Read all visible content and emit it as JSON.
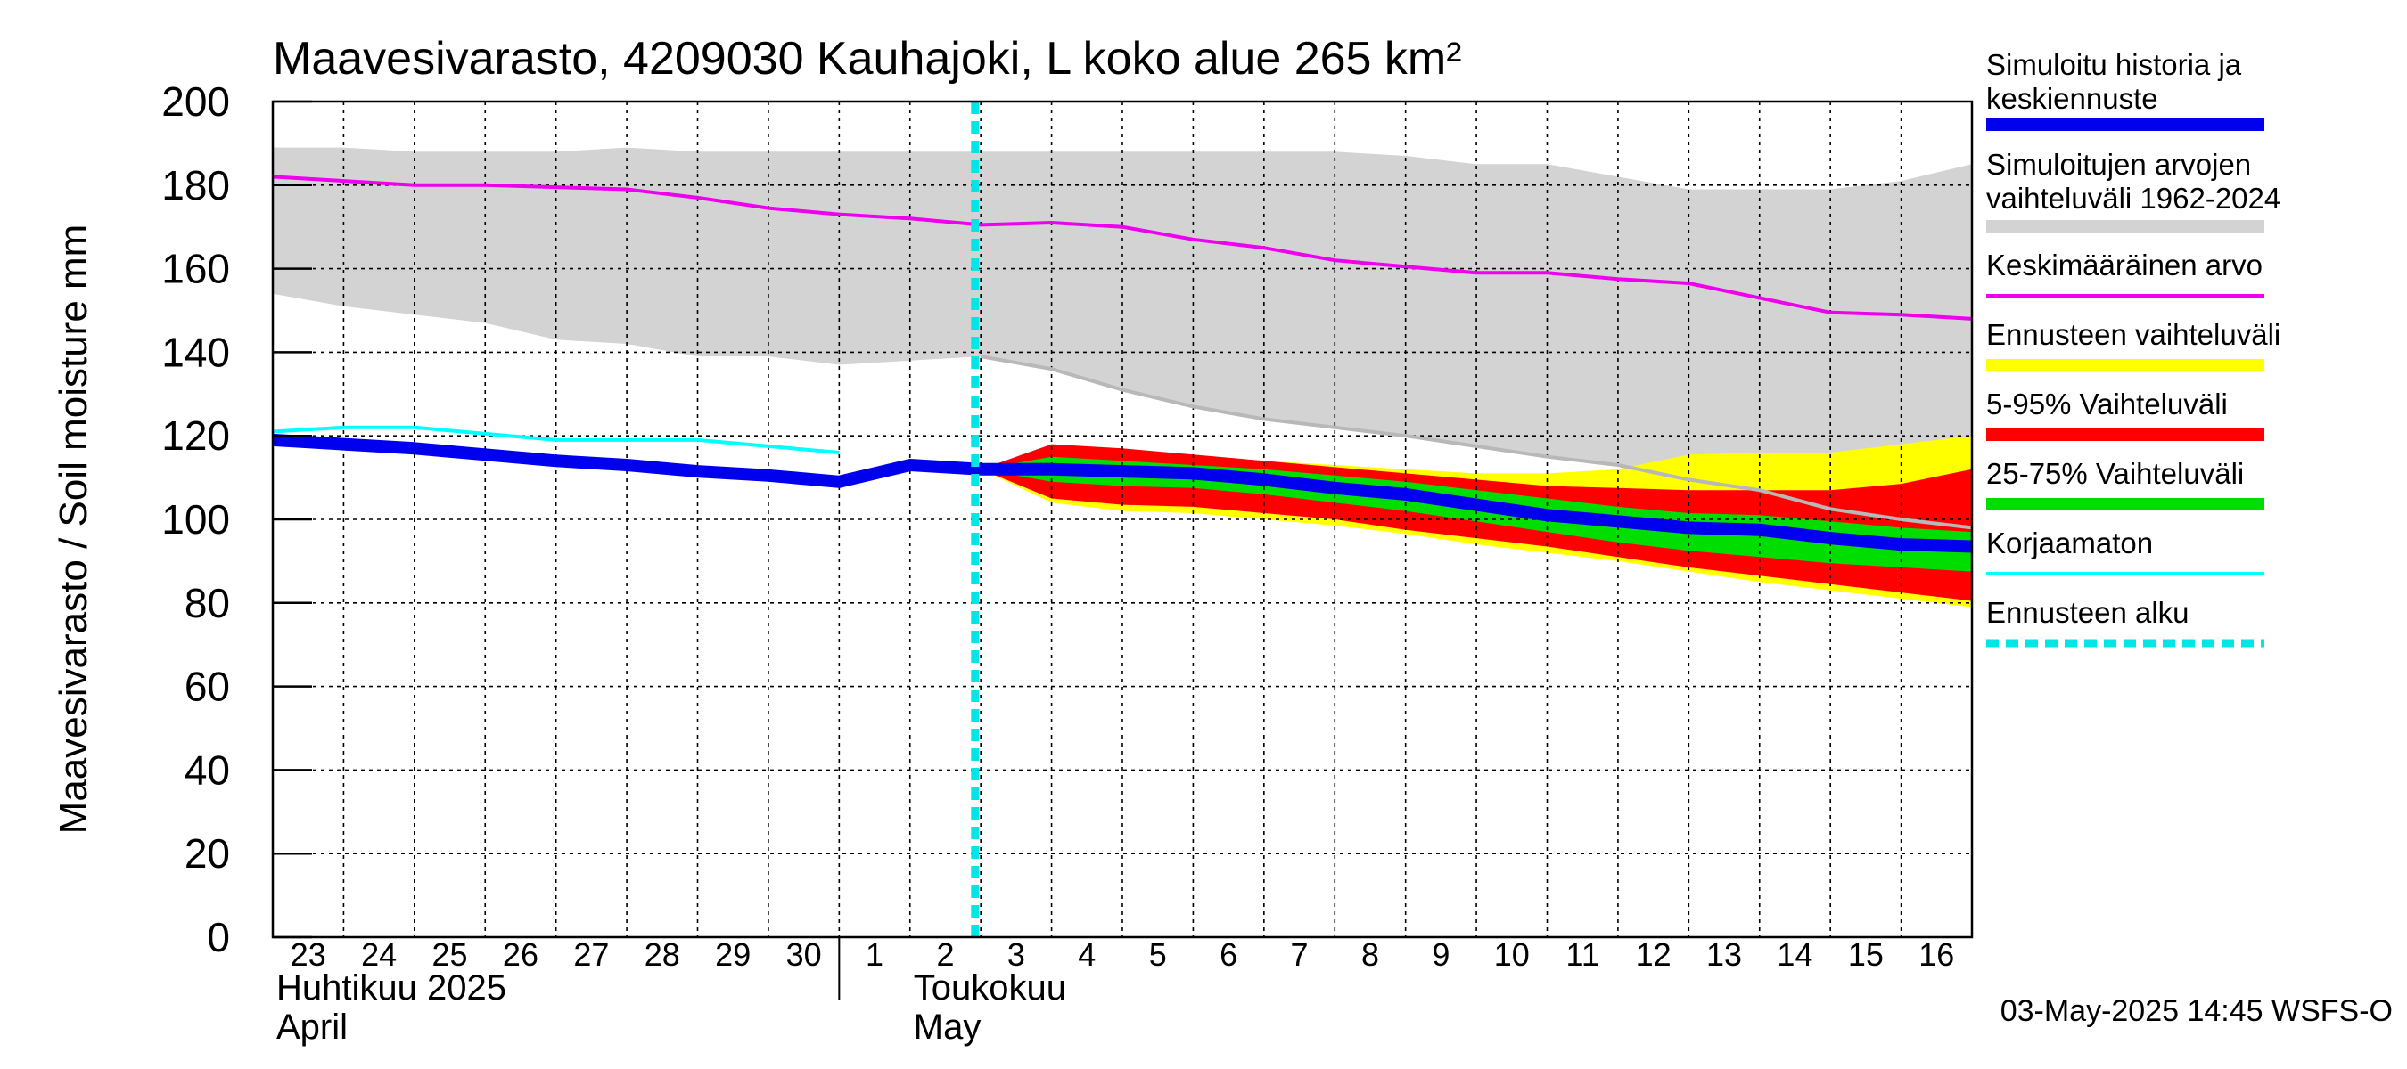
{
  "chart_data": {
    "type": "area",
    "title": "Maavesivarasto, 4209030 Kauhajoki, L koko alue 265 km²",
    "ylabel": "Maavesivarasto / Soil moisture   mm",
    "ylim": [
      0,
      200
    ],
    "yticks": [
      0,
      20,
      40,
      60,
      80,
      100,
      120,
      140,
      160,
      180,
      200
    ],
    "x_start": "2025-04-23",
    "x_end": "2025-05-17",
    "x_tick_labels": [
      "23",
      "24",
      "25",
      "26",
      "27",
      "28",
      "29",
      "30",
      "1",
      "2",
      "3",
      "4",
      "5",
      "6",
      "7",
      "8",
      "9",
      "10",
      "11",
      "12",
      "13",
      "14",
      "15",
      "16"
    ],
    "month_labels": [
      {
        "fi": "Huhtikuu  2025",
        "en": "April",
        "date": "2025-04-23"
      },
      {
        "fi": "Toukokuu",
        "en": "May",
        "date": "2025-05-02"
      }
    ],
    "month_divider": "2025-05-01",
    "forecast_start": "2025-05-03",
    "grid": true,
    "legend_position": "right",
    "timestamp": "03-May-2025 14:45 WSFS-O",
    "colors": {
      "history": "#0000ee",
      "range_hist": "#d3d3d3",
      "mean": "#ee00ee",
      "forecast_range": "#ffff00",
      "p5_95": "#ff0000",
      "p25_75": "#00dd00",
      "uncorrected": "#00ffff",
      "forecast_start": "#00e5e5",
      "range_upper_line": "#b8b8b8"
    },
    "series": [
      {
        "name": "Simuloitu historia ja keskiennuste",
        "key": "history",
        "x": [
          "2025-04-23",
          "2025-04-24",
          "2025-04-25",
          "2025-04-26",
          "2025-04-27",
          "2025-04-28",
          "2025-04-29",
          "2025-04-30",
          "2025-05-01",
          "2025-05-02",
          "2025-05-03",
          "2025-05-04",
          "2025-05-05",
          "2025-05-06",
          "2025-05-07",
          "2025-05-08",
          "2025-05-09",
          "2025-05-10",
          "2025-05-11",
          "2025-05-12",
          "2025-05-13",
          "2025-05-14",
          "2025-05-15",
          "2025-05-16",
          "2025-05-17"
        ],
        "y": [
          119,
          118,
          117,
          115.5,
          114,
          113,
          111.5,
          110.5,
          109,
          113,
          112,
          112,
          111.5,
          111,
          109.5,
          107.5,
          106,
          103.5,
          101,
          99.5,
          98,
          97.5,
          95.5,
          94,
          93.5
        ]
      },
      {
        "name": "Simuloitujen arvojen vaihteluväli 1962-2024",
        "key": "range_hist",
        "x": [
          "2025-04-23",
          "2025-04-24",
          "2025-04-25",
          "2025-04-26",
          "2025-04-27",
          "2025-04-28",
          "2025-04-29",
          "2025-04-30",
          "2025-05-01",
          "2025-05-02",
          "2025-05-03",
          "2025-05-04",
          "2025-05-05",
          "2025-05-06",
          "2025-05-07",
          "2025-05-08",
          "2025-05-09",
          "2025-05-10",
          "2025-05-11",
          "2025-05-12",
          "2025-05-13",
          "2025-05-14",
          "2025-05-15",
          "2025-05-16",
          "2025-05-17"
        ],
        "lower": [
          154,
          151,
          149,
          147,
          143,
          142,
          139,
          139,
          137,
          138,
          139,
          136,
          131,
          127,
          124,
          122,
          120,
          117.5,
          115,
          113,
          109.5,
          107,
          102.5,
          100,
          98
        ],
        "upper": [
          189,
          189,
          188,
          188,
          188,
          189,
          188,
          188,
          188,
          188,
          188,
          188,
          188,
          188,
          188,
          188,
          187,
          185,
          185,
          182,
          179,
          179,
          179,
          181,
          185
        ]
      },
      {
        "name": "Keskimääräinen arvo",
        "key": "mean",
        "x": [
          "2025-04-23",
          "2025-04-24",
          "2025-04-25",
          "2025-04-26",
          "2025-04-27",
          "2025-04-28",
          "2025-04-29",
          "2025-04-30",
          "2025-05-01",
          "2025-05-02",
          "2025-05-03",
          "2025-05-04",
          "2025-05-05",
          "2025-05-06",
          "2025-05-07",
          "2025-05-08",
          "2025-05-09",
          "2025-05-10",
          "2025-05-11",
          "2025-05-12",
          "2025-05-13",
          "2025-05-14",
          "2025-05-15",
          "2025-05-16",
          "2025-05-17"
        ],
        "y": [
          182,
          181,
          180,
          180,
          179.5,
          179,
          177,
          174.5,
          173,
          172,
          170.5,
          171,
          170,
          167,
          165,
          162,
          160.5,
          159,
          159,
          157.5,
          156.5,
          153,
          149.5,
          149,
          148
        ]
      },
      {
        "name": "Ennusteen vaihteluväli",
        "key": "forecast_range",
        "x": [
          "2025-05-03",
          "2025-05-04",
          "2025-05-05",
          "2025-05-06",
          "2025-05-07",
          "2025-05-08",
          "2025-05-09",
          "2025-05-10",
          "2025-05-11",
          "2025-05-12",
          "2025-05-13",
          "2025-05-14",
          "2025-05-15",
          "2025-05-16",
          "2025-05-17"
        ],
        "lower": [
          112,
          104,
          102,
          101.5,
          100,
          98.5,
          96.5,
          94,
          92,
          90,
          87.5,
          85,
          83,
          81,
          79
        ],
        "upper": [
          112,
          117,
          116,
          115,
          114,
          113,
          112,
          111,
          111,
          112,
          115.5,
          116,
          116,
          118,
          120
        ]
      },
      {
        "name": "5-95% Vaihteluväli",
        "key": "p5_95",
        "x": [
          "2025-05-03",
          "2025-05-04",
          "2025-05-05",
          "2025-05-06",
          "2025-05-07",
          "2025-05-08",
          "2025-05-09",
          "2025-05-10",
          "2025-05-11",
          "2025-05-12",
          "2025-05-13",
          "2025-05-14",
          "2025-05-15",
          "2025-05-16",
          "2025-05-17"
        ],
        "lower": [
          112,
          105,
          103.5,
          103,
          101.5,
          100,
          97.5,
          95.5,
          93.5,
          91,
          88.5,
          86.5,
          84.5,
          82.5,
          80.5
        ],
        "upper": [
          112,
          118,
          117,
          115.5,
          114,
          112.5,
          111,
          109.5,
          108,
          107.5,
          107,
          107,
          107,
          108.5,
          112
        ]
      },
      {
        "name": "25-75% Vaihteluväli",
        "key": "p25_75",
        "x": [
          "2025-05-03",
          "2025-05-04",
          "2025-05-05",
          "2025-05-06",
          "2025-05-07",
          "2025-05-08",
          "2025-05-09",
          "2025-05-10",
          "2025-05-11",
          "2025-05-12",
          "2025-05-13",
          "2025-05-14",
          "2025-05-15",
          "2025-05-16",
          "2025-05-17"
        ],
        "lower": [
          112,
          109,
          108,
          107.5,
          106,
          104,
          102,
          99.5,
          97,
          94.5,
          92.5,
          91,
          89.5,
          88.5,
          87.5
        ],
        "upper": [
          112,
          115,
          114,
          113,
          112,
          110.5,
          109,
          107,
          105,
          103,
          101.5,
          101,
          99.5,
          98,
          97
        ]
      },
      {
        "name": "Korjaamaton",
        "key": "uncorrected",
        "x": [
          "2025-04-23",
          "2025-04-24",
          "2025-04-25",
          "2025-04-26",
          "2025-04-27",
          "2025-04-28",
          "2025-04-29",
          "2025-04-30",
          "2025-05-01"
        ],
        "y": [
          121,
          122,
          122,
          120.5,
          119,
          119,
          119,
          117.5,
          116
        ]
      },
      {
        "name": "Ennusteen alku",
        "key": "forecast_start",
        "x": "2025-05-03"
      }
    ]
  }
}
